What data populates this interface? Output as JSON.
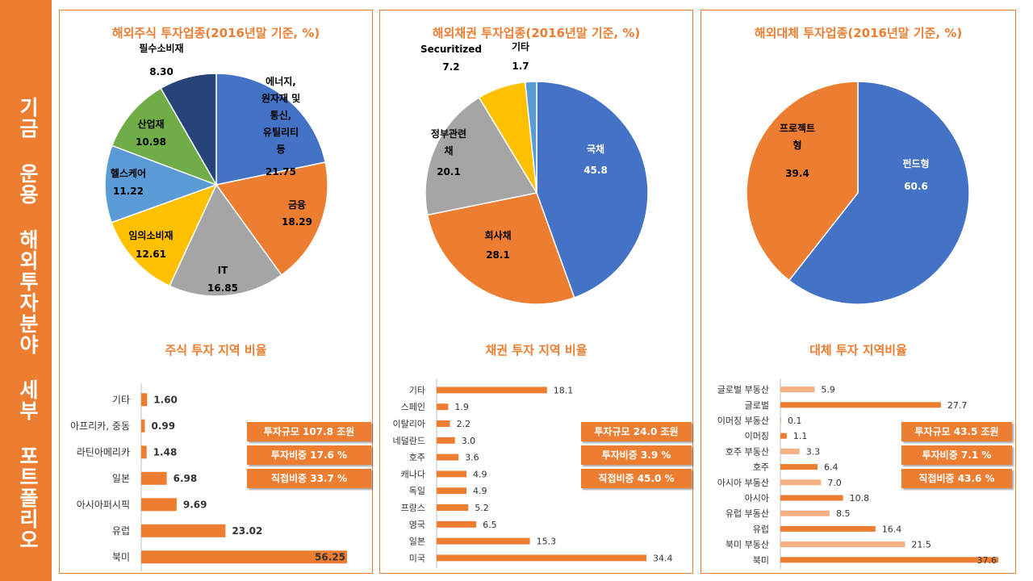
{
  "sidebar": {
    "title": "기금 운용 해외투자분야 세부 포트폴리오"
  },
  "colors": {
    "accent": "#ED7D31",
    "blue": "#4472C4",
    "gray": "#A5A5A5",
    "yellow": "#FFC000",
    "lightblue": "#5B9BD5",
    "green": "#70AD47",
    "navy": "#264478",
    "peach": "#F4B183"
  },
  "panels": [
    {
      "pie_title": "해외주식 투자업종(2016년말 기준, %)",
      "bar_title": "주식 투자 지역 비율",
      "badges": [
        "투자규모 107.8 조원",
        "투자비중 17.6 %",
        "직접비중 33.7 %"
      ]
    },
    {
      "pie_title": "해외채권 투자업종(2016년말 기준, %)",
      "bar_title": "채권 투자 지역 비율",
      "badges": [
        "투자규모 24.0 조원",
        "투자비중 3.9 %",
        "직접비중 45.0 %"
      ]
    },
    {
      "pie_title": "해외대체 투자업종(2016년말 기준, %)",
      "bar_title": "대체 투자 지역비율",
      "badges": [
        "투자규모 43.5 조원",
        "투자비중 7.1 %",
        "직접비중 43.6 %"
      ]
    }
  ],
  "chart_data": [
    {
      "type": "pie",
      "title": "해외주식 투자업종(2016년말 기준, %)",
      "slices": [
        {
          "label": "에너지, 원자재 및 통신, 유틸리티 등",
          "lines": [
            "에너지,",
            "원자재 및",
            "통신,",
            "유틸리티",
            "등"
          ],
          "value": 21.75,
          "color": "#4472C4"
        },
        {
          "label": "금융",
          "lines": [
            "금융"
          ],
          "value": 18.29,
          "color": "#ED7D31"
        },
        {
          "label": "IT",
          "lines": [
            "IT"
          ],
          "value": 16.85,
          "color": "#A5A5A5"
        },
        {
          "label": "임의소비재",
          "lines": [
            "임의소비재"
          ],
          "value": 12.61,
          "color": "#FFC000"
        },
        {
          "label": "헬스케어",
          "lines": [
            "헬스케어"
          ],
          "value": 11.22,
          "color": "#5B9BD5"
        },
        {
          "label": "산업재",
          "lines": [
            "산업재"
          ],
          "value": 10.98,
          "color": "#70AD47"
        },
        {
          "label": "필수소비재",
          "lines": [
            "필수소비재"
          ],
          "value": 8.3,
          "color": "#264478"
        }
      ],
      "value_format": 2
    },
    {
      "type": "pie",
      "title": "해외채권 투자업종(2016년말 기준, %)",
      "slices": [
        {
          "label": "국채",
          "lines": [
            "국채"
          ],
          "value": 45.8,
          "color": "#4472C4"
        },
        {
          "label": "회사채",
          "lines": [
            "회사채"
          ],
          "value": 28.1,
          "color": "#ED7D31"
        },
        {
          "label": "정부관련채",
          "lines": [
            "정부관련",
            "채"
          ],
          "value": 20.1,
          "color": "#A5A5A5"
        },
        {
          "label": "Securitized",
          "lines": [
            "Securitized"
          ],
          "value": 7.2,
          "color": "#FFC000"
        },
        {
          "label": "기타",
          "lines": [
            "기타"
          ],
          "value": 1.7,
          "color": "#5B9BD5"
        }
      ],
      "value_format": 1
    },
    {
      "type": "pie",
      "title": "해외대체 투자업종(2016년말 기준, %)",
      "slices": [
        {
          "label": "펀드형",
          "lines": [
            "펀드형"
          ],
          "value": 60.6,
          "color": "#4472C4"
        },
        {
          "label": "프로젝트형",
          "lines": [
            "프로젝트",
            "형"
          ],
          "value": 39.4,
          "color": "#ED7D31"
        }
      ],
      "value_format": 1
    },
    {
      "type": "bar",
      "title": "주식 투자 지역 비율",
      "orientation": "horizontal",
      "categories": [
        "기타",
        "아프리카, 중동",
        "라틴아메리카",
        "일본",
        "아시아퍼시픽",
        "유럽",
        "북미"
      ],
      "values": [
        1.6,
        0.99,
        1.48,
        6.98,
        9.69,
        23.02,
        56.25
      ],
      "value_labels": [
        "1.60",
        "0.99",
        "1.48",
        "6.98",
        "9.69",
        "23.02",
        "56.25"
      ],
      "xlim": [
        0,
        56.25
      ],
      "colors": [
        "#ED7D31",
        "#ED7D31",
        "#ED7D31",
        "#ED7D31",
        "#ED7D31",
        "#ED7D31",
        "#ED7D31"
      ]
    },
    {
      "type": "bar",
      "title": "채권 투자 지역 비율",
      "orientation": "horizontal",
      "categories": [
        "기타",
        "스페인",
        "이탈리아",
        "네덜란드",
        "호주",
        "캐나다",
        "독일",
        "프랑스",
        "영국",
        "일본",
        "미국"
      ],
      "values": [
        18.1,
        1.9,
        2.2,
        3.0,
        3.6,
        4.9,
        4.9,
        5.2,
        6.5,
        15.3,
        34.4
      ],
      "value_labels": [
        "18.1",
        "1.9",
        "2.2",
        "3.0",
        "3.6",
        "4.9",
        "4.9",
        "5.2",
        "6.5",
        "15.3",
        "34.4"
      ],
      "xlim": [
        0,
        34.4
      ],
      "colors": [
        "#ED7D31",
        "#ED7D31",
        "#ED7D31",
        "#ED7D31",
        "#ED7D31",
        "#ED7D31",
        "#ED7D31",
        "#ED7D31",
        "#ED7D31",
        "#ED7D31",
        "#ED7D31"
      ]
    },
    {
      "type": "bar",
      "title": "대체 투자 지역비율",
      "orientation": "horizontal",
      "categories": [
        "글로벌 부동산",
        "글로벌",
        "이머징 부동산",
        "이머징",
        "호주 부동산",
        "호주",
        "아시아 부동산",
        "아시아",
        "유럽 부동산",
        "유럽",
        "북미 부동산",
        "북미"
      ],
      "values": [
        5.9,
        27.7,
        0.1,
        1.1,
        3.3,
        6.4,
        7.0,
        10.8,
        8.5,
        16.4,
        21.5,
        37.6
      ],
      "value_labels": [
        "5.9",
        "27.7",
        "0.1",
        "1.1",
        "3.3",
        "6.4",
        "7.0",
        "10.8",
        "8.5",
        "16.4",
        "21.5",
        "37.6"
      ],
      "xlim": [
        0,
        37.6
      ],
      "colors": [
        "#F4B183",
        "#ED7D31",
        "#F4B183",
        "#ED7D31",
        "#F4B183",
        "#ED7D31",
        "#F4B183",
        "#ED7D31",
        "#F4B183",
        "#ED7D31",
        "#F4B183",
        "#ED7D31"
      ]
    }
  ]
}
